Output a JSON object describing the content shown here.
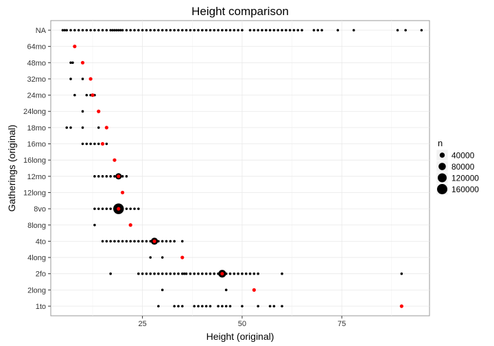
{
  "chart_data": {
    "type": "scatter",
    "title": "Height comparison",
    "xlabel": "Height (original)",
    "ylabel": "Gatherings (original)",
    "xlim": [
      2,
      97
    ],
    "x_ticks": [
      25,
      50,
      75
    ],
    "grid": true,
    "categories": [
      "1to",
      "2long",
      "2fo",
      "4long",
      "4to",
      "8long",
      "8vo",
      "12long",
      "12mo",
      "16long",
      "16mo",
      "18mo",
      "24long",
      "24mo",
      "32mo",
      "48mo",
      "64mo",
      "NA"
    ],
    "legend": {
      "title": "n",
      "position": "right",
      "entries": [
        {
          "label": "40000",
          "value": 40000
        },
        {
          "label": "80000",
          "value": 80000
        },
        {
          "label": "120000",
          "value": 120000
        },
        {
          "label": "160000",
          "value": 160000
        }
      ]
    },
    "series": [
      {
        "role": "observations",
        "color": "#000000",
        "points": [
          {
            "category": "1to",
            "x": [
              29,
              33,
              34,
              35,
              38,
              39,
              40,
              41,
              42,
              44,
              45,
              46,
              47,
              50,
              54,
              57,
              58,
              60
            ]
          },
          {
            "category": "2long",
            "x": [
              30,
              46
            ]
          },
          {
            "category": "2fo",
            "x": [
              17,
              24,
              25,
              26,
              27,
              28,
              29,
              30,
              31,
              32,
              33,
              34,
              35,
              35.5,
              36,
              37,
              38,
              39,
              40,
              41,
              42,
              43,
              44,
              46,
              47,
              48,
              49,
              50,
              51,
              52,
              53,
              54,
              60,
              90
            ]
          },
          {
            "category": "4long",
            "x": [
              27,
              30
            ]
          },
          {
            "category": "4to",
            "x": [
              15,
              16,
              17,
              18,
              19,
              20,
              21,
              22,
              23,
              24,
              25,
              26,
              27,
              29,
              30,
              31,
              32,
              33,
              35
            ]
          },
          {
            "category": "8long",
            "x": [
              13
            ]
          },
          {
            "category": "8vo",
            "x": [
              13,
              14,
              15,
              16,
              17,
              18,
              20,
              21,
              22,
              23,
              24
            ]
          },
          {
            "category": "12long",
            "x": []
          },
          {
            "category": "12mo",
            "x": [
              13,
              14,
              15,
              16,
              17,
              18,
              20,
              21
            ]
          },
          {
            "category": "16long",
            "x": []
          },
          {
            "category": "16mo",
            "x": [
              10,
              11,
              12,
              13,
              14,
              15,
              16
            ]
          },
          {
            "category": "18mo",
            "x": [
              6,
              7,
              10,
              14,
              16
            ]
          },
          {
            "category": "24long",
            "x": [
              10
            ]
          },
          {
            "category": "24mo",
            "x": [
              8,
              11,
              12,
              13
            ]
          },
          {
            "category": "32mo",
            "x": [
              7,
              10,
              12
            ]
          },
          {
            "category": "48mo",
            "x": [
              7,
              7.5,
              10
            ]
          },
          {
            "category": "64mo",
            "x": []
          },
          {
            "category": "NA",
            "x": [
              5,
              5.5,
              6,
              7,
              8,
              9,
              10,
              11,
              12,
              13,
              14,
              15,
              16,
              17,
              17.5,
              18,
              18.5,
              19,
              19.5,
              20,
              21,
              22,
              23,
              24,
              25,
              26,
              27,
              28,
              29,
              30,
              31,
              32,
              33,
              34,
              35,
              36,
              37,
              38,
              39,
              40,
              41,
              42,
              43,
              44,
              45,
              46,
              47,
              48,
              49,
              50,
              52,
              53,
              54,
              55,
              56,
              57,
              58,
              59,
              60,
              61,
              62,
              63,
              64,
              65,
              68,
              69,
              70,
              74,
              78,
              89,
              91,
              95
            ]
          }
        ]
      },
      {
        "role": "highlighted",
        "color": "#ff0000",
        "points": [
          {
            "category": "1to",
            "x": 90,
            "n": 3000
          },
          {
            "category": "2long",
            "x": 53,
            "n": 2000
          },
          {
            "category": "2fo",
            "x": 45,
            "n": 90000
          },
          {
            "category": "4long",
            "x": 35,
            "n": 3000
          },
          {
            "category": "4to",
            "x": 28,
            "n": 75000
          },
          {
            "category": "8long",
            "x": 22,
            "n": 2000
          },
          {
            "category": "8vo",
            "x": 19,
            "n": 170000
          },
          {
            "category": "12long",
            "x": 20,
            "n": 2000
          },
          {
            "category": "12mo",
            "x": 19,
            "n": 60000
          },
          {
            "category": "16long",
            "x": 18,
            "n": 1000
          },
          {
            "category": "16mo",
            "x": 15,
            "n": 3000
          },
          {
            "category": "18mo",
            "x": 16,
            "n": 3000
          },
          {
            "category": "24long",
            "x": 14,
            "n": 3000
          },
          {
            "category": "24mo",
            "x": 12.5,
            "n": 3000
          },
          {
            "category": "32mo",
            "x": 12,
            "n": 2000
          },
          {
            "category": "48mo",
            "x": 10,
            "n": 3000
          },
          {
            "category": "64mo",
            "x": 8,
            "n": 2000
          }
        ]
      }
    ]
  }
}
